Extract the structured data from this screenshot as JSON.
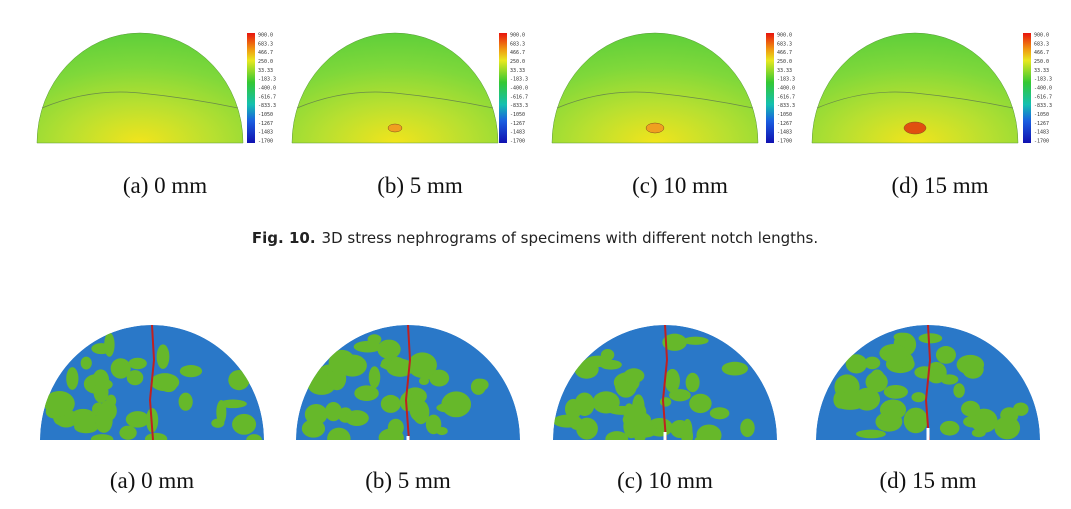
{
  "figure_top": {
    "panels": [
      {
        "label": "(a) 0 mm"
      },
      {
        "label": "(b) 5 mm"
      },
      {
        "label": "(c) 10 mm"
      },
      {
        "label": "(d) 15 mm"
      }
    ],
    "colorbar_labels": [
      "900.0",
      "683.3",
      "466.7",
      "250.0",
      "33.33",
      "-183.3",
      "-400.0",
      "-616.7",
      "-833.3",
      "-1050",
      "-1267",
      "-1483",
      "-1700"
    ]
  },
  "caption": {
    "label": "Fig. 10.",
    "text": "3D stress nephrograms of specimens with different notch lengths."
  },
  "figure_bottom": {
    "panels": [
      {
        "label": "(a) 0 mm"
      },
      {
        "label": "(b) 5 mm"
      },
      {
        "label": "(c) 10 mm"
      },
      {
        "label": "(d) 15 mm"
      }
    ]
  }
}
